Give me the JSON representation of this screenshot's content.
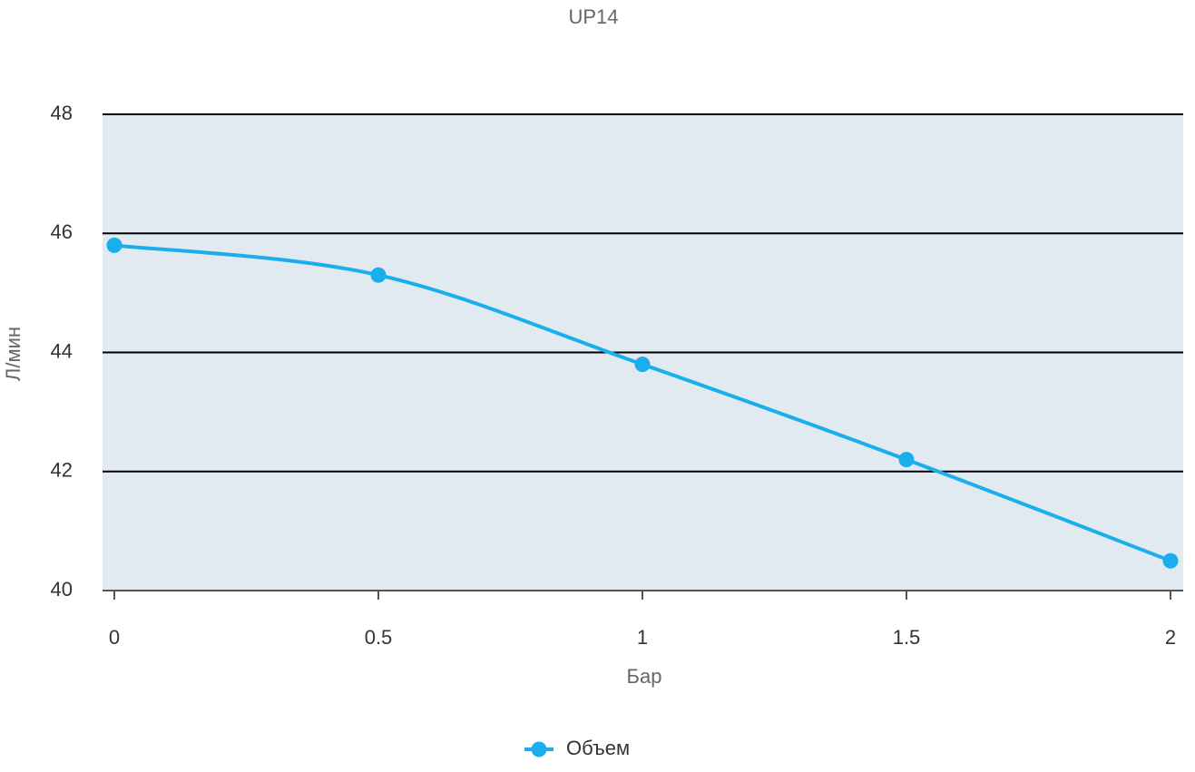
{
  "chart_data": {
    "type": "line",
    "title": "UP14",
    "xlabel": "Бар",
    "ylabel": "Л/мин",
    "x": [
      0,
      0.5,
      1,
      1.5,
      2
    ],
    "series": [
      {
        "name": "Объем",
        "color": "#1aaeed",
        "values": [
          45.8,
          45.3,
          43.8,
          42.2,
          40.5
        ]
      }
    ],
    "xlim": [
      0,
      2
    ],
    "xticks": [
      0,
      0.5,
      1,
      1.5,
      2
    ],
    "ylim": [
      40,
      48
    ],
    "yticks": [
      40,
      42,
      44,
      46,
      48
    ],
    "grid": true,
    "legend": "bottom"
  }
}
